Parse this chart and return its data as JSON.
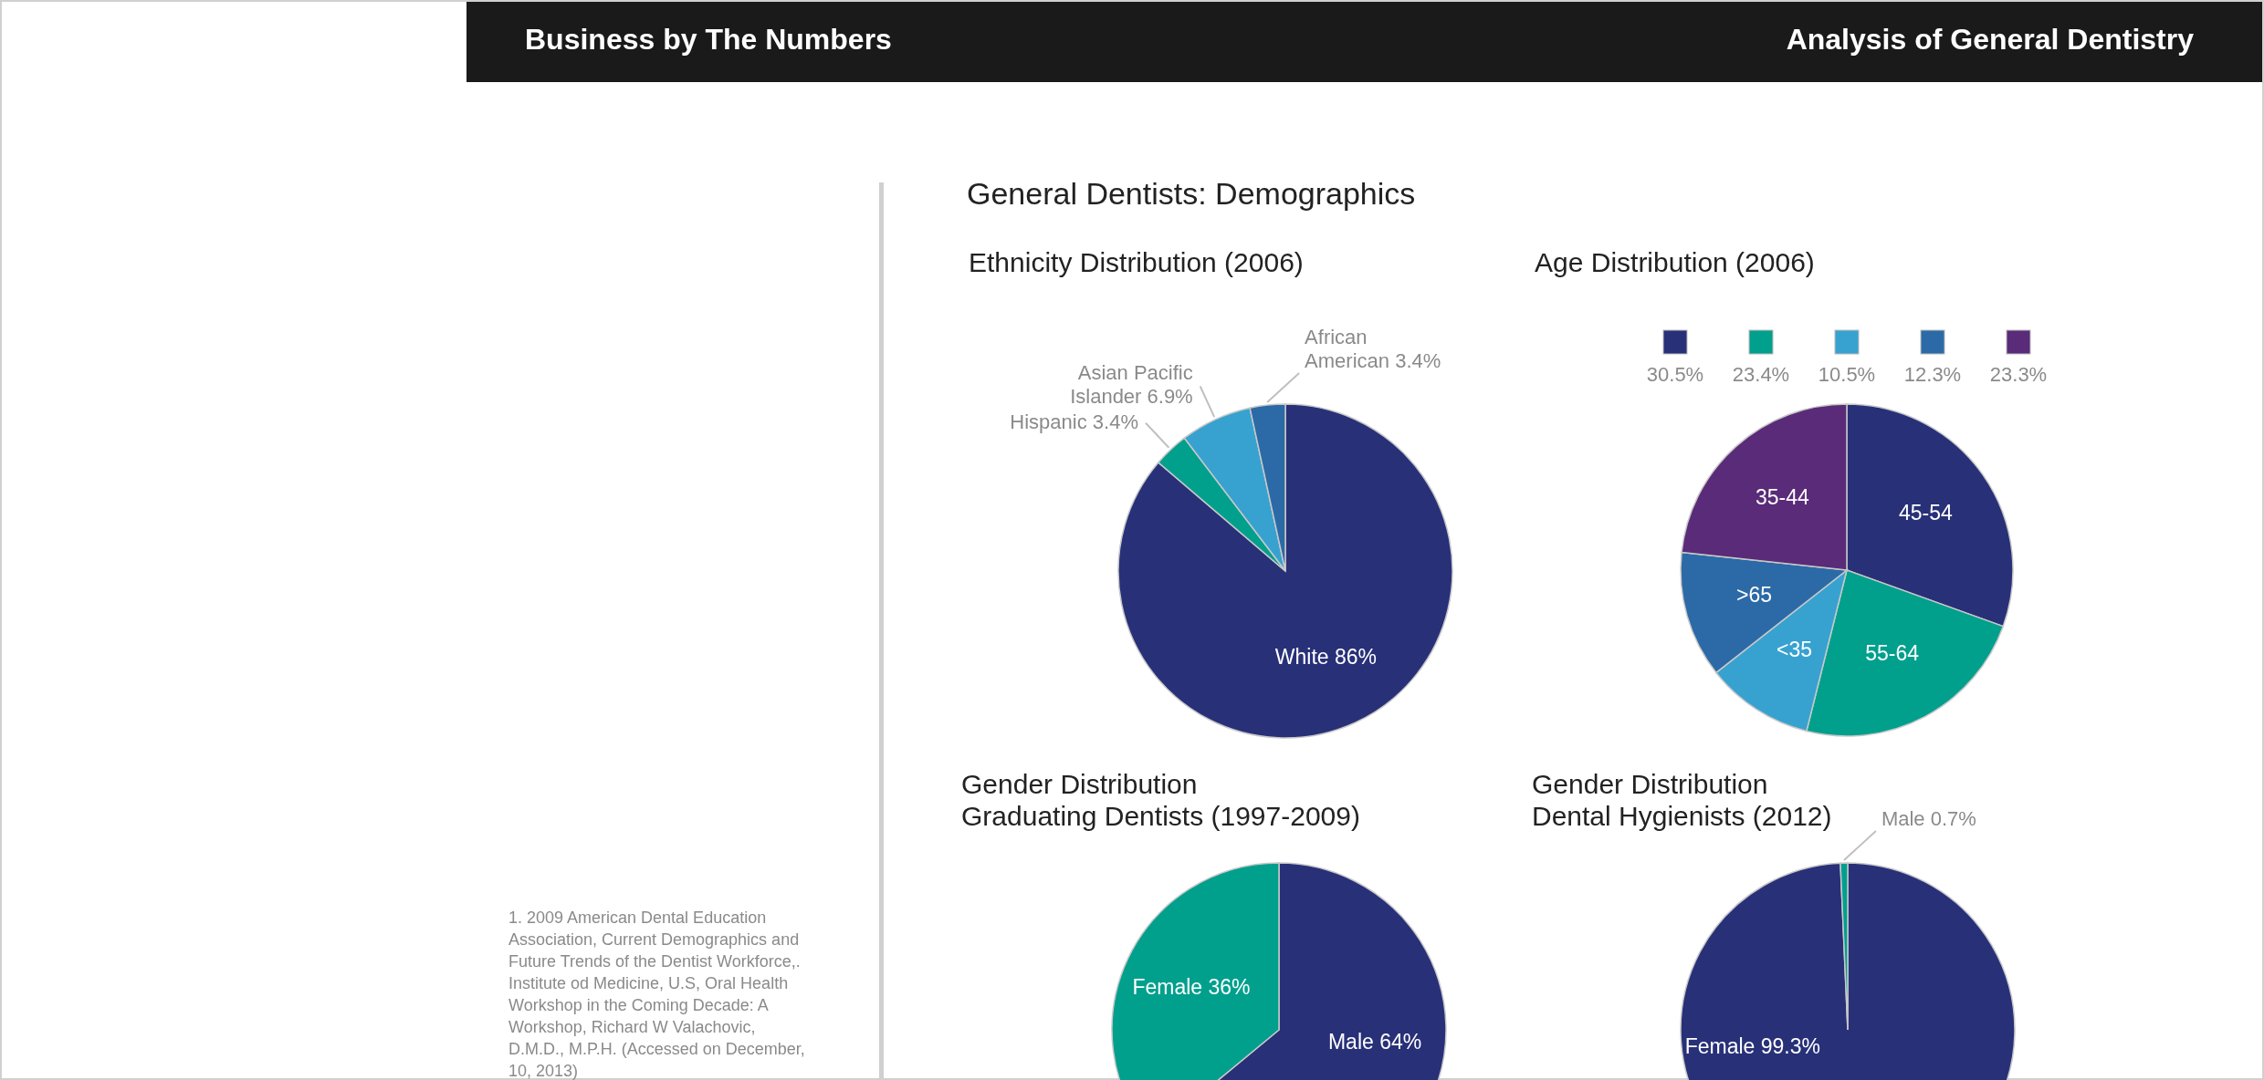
{
  "chart_data": [
    {
      "type": "pie",
      "title": "Ethnicity Distribution (2006)",
      "categories": [
        "White",
        "Hispanic",
        "Asian Pacific Islander",
        "African American"
      ],
      "values": [
        86,
        3.4,
        6.9,
        3.4
      ],
      "value_labels": [
        "86%",
        "3.4%",
        "6.9%",
        "3.4%"
      ],
      "colors": [
        "#283078",
        "#00a08d",
        "#37a2d0",
        "#2b6aa6"
      ],
      "annotations": [
        "Business by The Numbers",
        "Analysis of General Dentistry",
        "General Dentists: Demographics",
        "1. 2009 American Dental Education Association, Current Demographics and Future Trends of the Dentist Workforce,. Institute od Medicine, U.S, Oral Health Workshop in the Coming Decade: A Workshop, Richard W Valachovic, D.M.D., M.P.H. (Accessed on December, 10, 2013)"
      ]
    },
    {
      "type": "pie",
      "title": "Age Distribution (2006)",
      "categories": [
        "45-54",
        "55-64",
        "<35",
        ">65",
        "35-44"
      ],
      "values": [
        30.5,
        23.4,
        10.5,
        12.3,
        23.3
      ],
      "colors": [
        "#283078",
        "#00a08d",
        "#37a2d0",
        "#2b6aa6",
        "#5a2b78"
      ],
      "annotations": [
        "30.5%",
        "23.4%",
        "10.5%",
        "12.3%",
        "23.3%"
      ]
    },
    {
      "type": "pie",
      "title": "Gender Distribution",
      "subtitle": "Graduating Dentists (1997-2009)",
      "categories": [
        "Male",
        "Female"
      ],
      "values": [
        64,
        36
      ],
      "value_labels": [
        "64%",
        "36%"
      ],
      "colors": [
        "#283078",
        "#00a08d"
      ]
    },
    {
      "type": "pie",
      "title": "Gender Distribution",
      "subtitle": "Dental Hygienists (2012)",
      "categories": [
        "Female",
        "Male"
      ],
      "values": [
        99.3,
        0.7
      ],
      "value_labels": [
        "99.3%",
        "0.7%"
      ],
      "colors": [
        "#283078",
        "#00a08d"
      ]
    }
  ]
}
